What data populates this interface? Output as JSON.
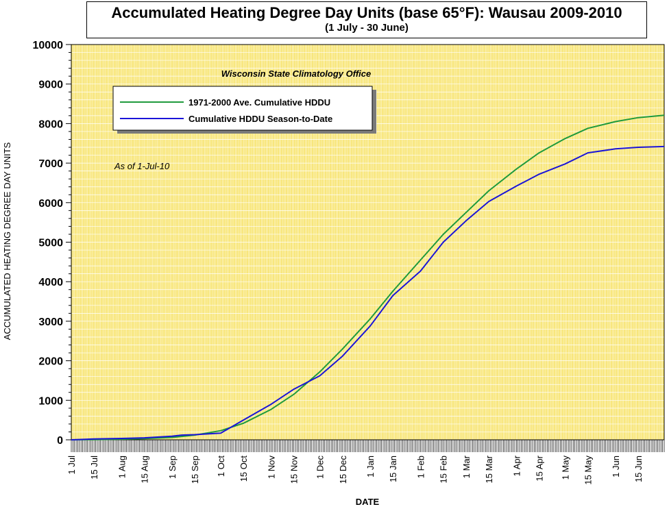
{
  "colors": {
    "plot_bg": "#f7e36a",
    "grid": "#ffffff",
    "normal_line": "#1e9a3c",
    "season_line": "#1a14d8",
    "axis": "#000000"
  },
  "chart_data": {
    "type": "line",
    "title": "Accumulated Heating Degree Day Units (base 65°F): Wausau 2009-2010",
    "subtitle": "(1 July - 30 June)",
    "xlabel": "DATE",
    "ylabel": "ACCUMULATED HEATING DEGREE DAY UNITS",
    "annotation_org": "Wisconsin State Climatology Office",
    "annotation_asof": "As of 1-Jul-10",
    "ylim": [
      0,
      10000
    ],
    "y_ticks": [
      "0",
      "1000",
      "2000",
      "3000",
      "4000",
      "5000",
      "6000",
      "7000",
      "8000",
      "9000",
      "10000"
    ],
    "xlim": [
      "2009-07-01",
      "2010-07-01"
    ],
    "x_ticks": [
      {
        "date": "2009-07-01",
        "label": "1 Jul"
      },
      {
        "date": "2009-07-15",
        "label": "15 Jul"
      },
      {
        "date": "2009-08-01",
        "label": "1 Aug"
      },
      {
        "date": "2009-08-15",
        "label": "15 Aug"
      },
      {
        "date": "2009-09-01",
        "label": "1 Sep"
      },
      {
        "date": "2009-09-15",
        "label": "15 Sep"
      },
      {
        "date": "2009-10-01",
        "label": "1 Oct"
      },
      {
        "date": "2009-10-15",
        "label": "15 Oct"
      },
      {
        "date": "2009-11-01",
        "label": "1 Nov"
      },
      {
        "date": "2009-11-15",
        "label": "15 Nov"
      },
      {
        "date": "2009-12-01",
        "label": "1 Dec"
      },
      {
        "date": "2009-12-15",
        "label": "15 Dec"
      },
      {
        "date": "2010-01-01",
        "label": "1 Jan"
      },
      {
        "date": "2010-01-15",
        "label": "15 Jan"
      },
      {
        "date": "2010-02-01",
        "label": "1 Feb"
      },
      {
        "date": "2010-02-15",
        "label": "15 Feb"
      },
      {
        "date": "2010-03-01",
        "label": "1 Mar"
      },
      {
        "date": "2010-03-15",
        "label": "15 Mar"
      },
      {
        "date": "2010-04-01",
        "label": "1 Apr"
      },
      {
        "date": "2010-04-15",
        "label": "15 Apr"
      },
      {
        "date": "2010-05-01",
        "label": "1 May"
      },
      {
        "date": "2010-05-15",
        "label": "15 May"
      },
      {
        "date": "2010-06-01",
        "label": "1 Jun"
      },
      {
        "date": "2010-06-15",
        "label": "15 Jun"
      }
    ],
    "grid": true,
    "legend_position": "top-left",
    "series": [
      {
        "name": "1971-2000 Ave. Cumulative HDDU",
        "color": "#1e9a3c",
        "points": [
          [
            "2009-07-01",
            0
          ],
          [
            "2009-07-15",
            5
          ],
          [
            "2009-08-01",
            15
          ],
          [
            "2009-08-15",
            30
          ],
          [
            "2009-09-01",
            60
          ],
          [
            "2009-09-15",
            120
          ],
          [
            "2009-10-01",
            230
          ],
          [
            "2009-10-15",
            420
          ],
          [
            "2009-11-01",
            770
          ],
          [
            "2009-11-15",
            1150
          ],
          [
            "2009-12-01",
            1720
          ],
          [
            "2009-12-15",
            2300
          ],
          [
            "2010-01-01",
            3060
          ],
          [
            "2010-01-15",
            3760
          ],
          [
            "2010-02-01",
            4550
          ],
          [
            "2010-02-15",
            5200
          ],
          [
            "2010-03-01",
            5750
          ],
          [
            "2010-03-15",
            6300
          ],
          [
            "2010-04-01",
            6850
          ],
          [
            "2010-04-15",
            7260
          ],
          [
            "2010-05-01",
            7620
          ],
          [
            "2010-05-15",
            7880
          ],
          [
            "2010-06-01",
            8050
          ],
          [
            "2010-06-15",
            8150
          ],
          [
            "2010-07-01",
            8210
          ]
        ]
      },
      {
        "name": "Cumulative HDDU Season-to-Date",
        "color": "#1a14d8",
        "points": [
          [
            "2009-07-01",
            0
          ],
          [
            "2009-07-15",
            20
          ],
          [
            "2009-08-01",
            35
          ],
          [
            "2009-08-15",
            50
          ],
          [
            "2009-09-01",
            90
          ],
          [
            "2009-09-07",
            120
          ],
          [
            "2009-09-15",
            130
          ],
          [
            "2009-10-01",
            170
          ],
          [
            "2009-10-15",
            500
          ],
          [
            "2009-11-01",
            900
          ],
          [
            "2009-11-15",
            1280
          ],
          [
            "2009-12-01",
            1620
          ],
          [
            "2009-12-15",
            2120
          ],
          [
            "2010-01-01",
            2880
          ],
          [
            "2010-01-15",
            3650
          ],
          [
            "2010-02-01",
            4270
          ],
          [
            "2010-02-15",
            5000
          ],
          [
            "2010-03-01",
            5540
          ],
          [
            "2010-03-15",
            6030
          ],
          [
            "2010-04-01",
            6420
          ],
          [
            "2010-04-15",
            6720
          ],
          [
            "2010-05-01",
            6980
          ],
          [
            "2010-05-15",
            7260
          ],
          [
            "2010-06-01",
            7360
          ],
          [
            "2010-06-15",
            7400
          ],
          [
            "2010-07-01",
            7420
          ]
        ]
      }
    ]
  }
}
